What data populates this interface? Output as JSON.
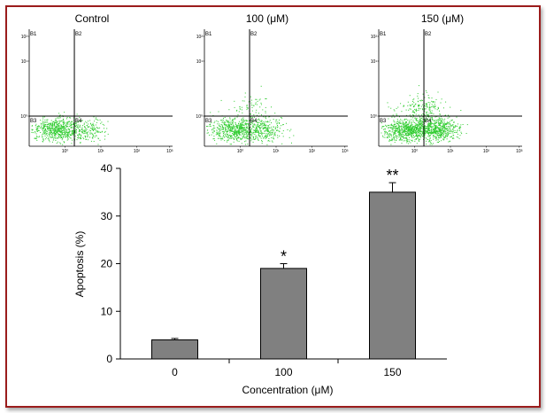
{
  "panels": [
    {
      "title": "Control",
      "dots": {
        "q1": 0,
        "q2": 0,
        "q3": 650,
        "q4": 160,
        "color": "#2ecc2e"
      },
      "y_ticks": [
        "10²",
        "10¹",
        "10⁰"
      ],
      "x_ticks": [
        "10⁰",
        "10¹",
        "10²",
        "10³"
      ],
      "quadrants": {
        "q1": "B1",
        "q2": "B2",
        "q3": "B3",
        "q4": "B4"
      }
    },
    {
      "title": "100 (μM)",
      "dots": {
        "q1": 10,
        "q2": 60,
        "q3": 600,
        "q4": 280,
        "color": "#2ecc2e"
      },
      "y_ticks": [
        "10²",
        "10¹",
        "10⁰"
      ],
      "x_ticks": [
        "10⁰",
        "10¹",
        "10²",
        "10³"
      ],
      "quadrants": {
        "q1": "B1",
        "q2": "B2",
        "q3": "B3",
        "q4": "B4"
      }
    },
    {
      "title": "150 (μM)",
      "dots": {
        "q1": 60,
        "q2": 130,
        "q3": 780,
        "q4": 520,
        "color": "#2ecc2e"
      },
      "y_ticks": [
        "10²",
        "10¹",
        "10⁰"
      ],
      "x_ticks": [
        "10⁰",
        "10¹",
        "10²",
        "10³"
      ],
      "quadrants": {
        "q1": "B1",
        "q2": "B2",
        "q3": "B3",
        "q4": "B4"
      }
    }
  ],
  "chart_data": {
    "type": "bar",
    "categories": [
      "0",
      "100",
      "150"
    ],
    "values": [
      4,
      19,
      35
    ],
    "errors": [
      0.3,
      1.0,
      2.0
    ],
    "significance": [
      "",
      "*",
      "**"
    ],
    "xlabel": "Concentration (μM)",
    "ylabel": "Apoptosis (%)",
    "ylim": [
      0,
      40
    ],
    "yticks": [
      0,
      10,
      20,
      30,
      40
    ],
    "bar_color": "#808080",
    "grid": false
  }
}
